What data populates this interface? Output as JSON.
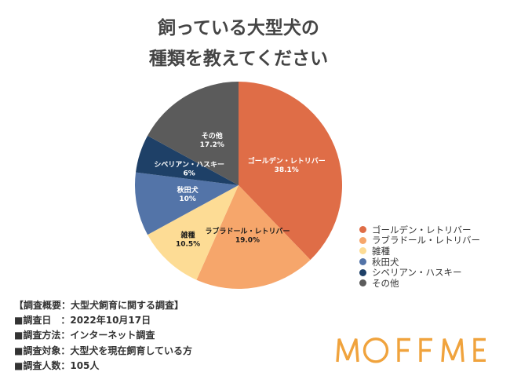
{
  "chart_data": {
    "type": "pie",
    "title": [
      "飼っている大型犬の",
      "種類を教えてください"
    ],
    "categories": [
      "ゴールデン・レトリバー",
      "ラブラドール・レトリバー",
      "雑種",
      "秋田犬",
      "シベリアン・ハスキー",
      "その他"
    ],
    "values": [
      38.1,
      19.0,
      10.5,
      10,
      6,
      17.2
    ],
    "value_labels": [
      "38.1%",
      "19.0%",
      "10.5%",
      "10%",
      "6%",
      "17.2%"
    ],
    "colors": [
      "#DF6D47",
      "#F6A66B",
      "#FDDC95",
      "#5374A8",
      "#1E4067",
      "#5B5B5B"
    ],
    "label_colors": [
      "#FFFFFF",
      "#1A1A1A",
      "#1A1A1A",
      "#FFFFFF",
      "#FFFFFF",
      "#FFFFFF"
    ],
    "legend": "right"
  },
  "survey": {
    "heading": "【調査概要：大型犬飼育に関する調査】",
    "lines": [
      "■調査日　：2022年10月17日",
      "■調査方法：インターネット調査",
      "■調査対象：大型犬を現在飼育している方",
      "■調査人数：105人"
    ]
  },
  "logo": {
    "text": "MOFFME",
    "color": "#F0A33D"
  }
}
